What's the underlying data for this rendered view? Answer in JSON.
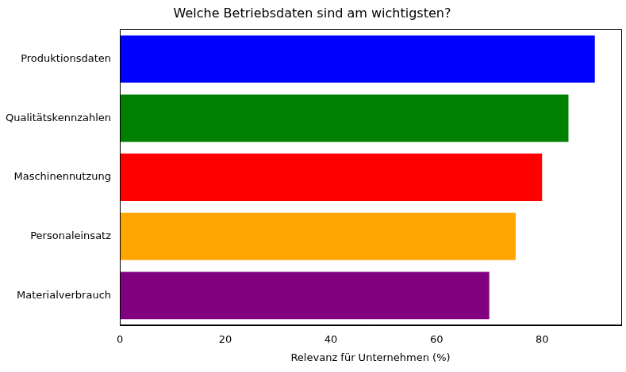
{
  "chart_data": {
    "type": "bar",
    "orientation": "horizontal",
    "title": "Welche Betriebsdaten sind am wichtigsten?",
    "x_label": "Relevanz für Unternehmen (%)",
    "categories": [
      "Produktionsdaten",
      "Qualitätskennzahlen",
      "Maschinennutzung",
      "Personaleinsatz",
      "Materialverbrauch"
    ],
    "values": [
      90,
      85,
      80,
      75,
      70
    ],
    "colors": [
      "blue",
      "green",
      "red",
      "orange",
      "purple"
    ],
    "xlim": [
      0,
      95
    ],
    "xticks": [
      0,
      20,
      40,
      60,
      80
    ],
    "grid": false
  }
}
